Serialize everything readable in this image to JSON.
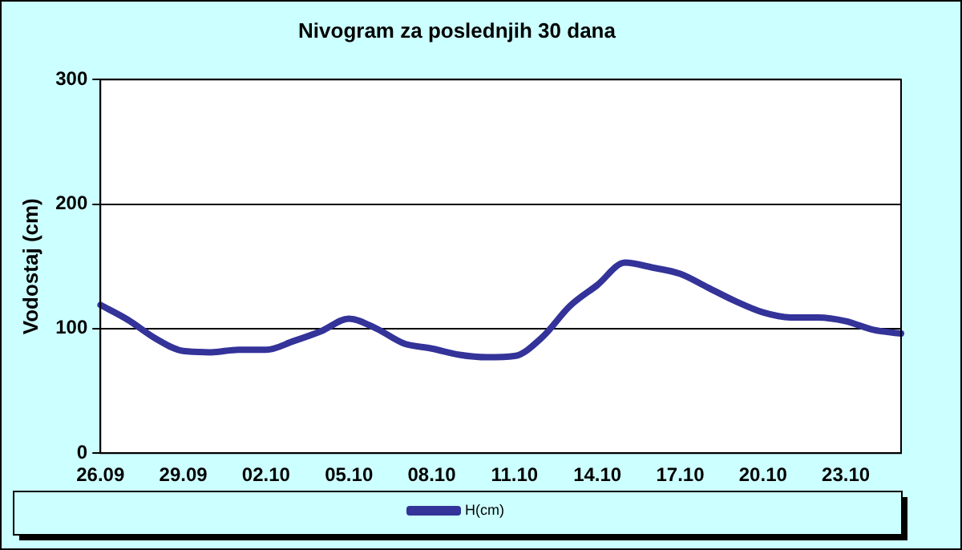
{
  "chart_data": {
    "type": "line",
    "title": "Nivogram za poslednjih 30 dana",
    "ylabel": "Vodostaj (cm)",
    "categories": [
      "26.09",
      null,
      null,
      "29.09",
      null,
      null,
      "02.10",
      null,
      null,
      "05.10",
      null,
      null,
      "08.10",
      null,
      null,
      "11.10",
      null,
      null,
      "14.10",
      null,
      null,
      "17.10",
      null,
      null,
      "20.10",
      null,
      null,
      "23.10",
      null,
      null
    ],
    "series": [
      {
        "name": "H(cm)",
        "color": "#333399",
        "values": [
          119,
          107,
          92,
          82,
          81,
          83,
          83,
          90,
          98,
          108,
          100,
          88,
          84,
          79,
          77,
          78,
          93,
          118,
          135,
          153,
          149,
          144,
          133,
          122,
          113,
          109,
          109,
          106,
          99,
          96
        ]
      }
    ],
    "ylim": [
      0,
      300
    ],
    "yticks": [
      0,
      100,
      200,
      300
    ],
    "grid": "y",
    "legend": "bottom",
    "marker": "none",
    "line_style": "solid"
  }
}
